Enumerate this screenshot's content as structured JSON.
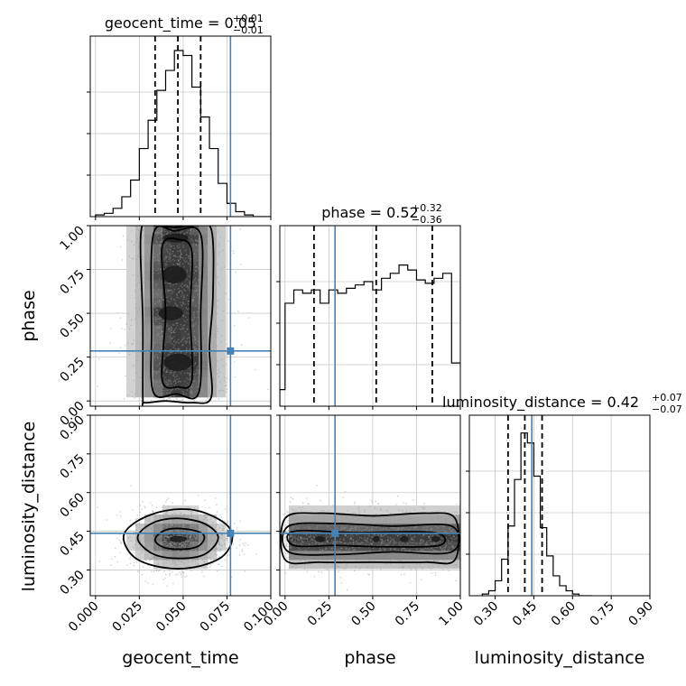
{
  "chart_data": {
    "type": "corner",
    "parameters": [
      "geocent_time",
      "phase",
      "luminosity_distance"
    ],
    "truths": {
      "geocent_time": 0.077,
      "phase": 0.285,
      "luminosity_distance": 0.442
    },
    "titles": [
      {
        "parameter": "geocent_time",
        "label": "geocent_time = 0.05",
        "sup": "+0.01",
        "sub": "−0.01"
      },
      {
        "parameter": "phase",
        "label": "phase = 0.52",
        "sup": "+0.32",
        "sub": "−0.36"
      },
      {
        "parameter": "luminosity_distance",
        "label": "luminosity_distance = 0.42",
        "sup": "+0.07",
        "sub": "−0.07"
      }
    ],
    "axes": {
      "geocent_time": {
        "range": [
          -0.003,
          0.1
        ],
        "ticks": [
          0.0,
          0.025,
          0.05,
          0.075,
          0.1
        ],
        "tick_labels": [
          "0.000",
          "0.025",
          "0.050",
          "0.075",
          "0.100"
        ]
      },
      "phase": {
        "range": [
          -0.03,
          1.0
        ],
        "ticks": [
          0.0,
          0.25,
          0.5,
          0.75,
          1.0
        ],
        "tick_labels": [
          "0.00",
          "0.25",
          "0.50",
          "0.75",
          "1.00"
        ]
      },
      "luminosity_distance": {
        "range": [
          0.2,
          0.9
        ],
        "ticks": [
          0.3,
          0.45,
          0.6,
          0.75,
          0.9
        ],
        "tick_labels": [
          "0.30",
          "0.45",
          "0.60",
          "0.75",
          "0.90"
        ]
      }
    },
    "histograms": {
      "geocent_time": {
        "quantiles": [
          0.034,
          0.047,
          0.06
        ],
        "bin_edges": [
          0.0,
          0.005,
          0.01,
          0.015,
          0.02,
          0.025,
          0.03,
          0.035,
          0.04,
          0.045,
          0.05,
          0.055,
          0.06,
          0.065,
          0.07,
          0.075,
          0.08,
          0.085,
          0.09,
          0.095,
          0.1
        ],
        "counts": [
          0.01,
          0.02,
          0.05,
          0.12,
          0.22,
          0.41,
          0.58,
          0.76,
          0.88,
          1.0,
          0.97,
          0.78,
          0.6,
          0.41,
          0.2,
          0.08,
          0.03,
          0.01,
          0.0,
          0.0
        ]
      },
      "phase": {
        "quantiles": [
          0.165,
          0.52,
          0.84
        ],
        "bin_edges": [
          -0.03,
          0.0,
          0.05,
          0.1,
          0.15,
          0.2,
          0.25,
          0.3,
          0.35,
          0.4,
          0.45,
          0.5,
          0.55,
          0.6,
          0.65,
          0.7,
          0.75,
          0.8,
          0.85,
          0.9,
          0.95,
          1.0
        ],
        "counts": [
          0.1,
          0.62,
          0.7,
          0.68,
          0.7,
          0.62,
          0.7,
          0.68,
          0.71,
          0.73,
          0.75,
          0.7,
          0.77,
          0.8,
          0.85,
          0.82,
          0.76,
          0.74,
          0.77,
          0.8,
          0.26
        ]
      },
      "luminosity_distance": {
        "quantiles": [
          0.35,
          0.415,
          0.482
        ],
        "bin_edges": [
          0.25,
          0.275,
          0.3,
          0.325,
          0.35,
          0.375,
          0.4,
          0.425,
          0.45,
          0.475,
          0.5,
          0.525,
          0.55,
          0.575,
          0.6,
          0.625,
          0.65,
          0.675
        ],
        "counts": [
          0.01,
          0.03,
          0.09,
          0.22,
          0.42,
          0.7,
          0.98,
          0.92,
          0.72,
          0.41,
          0.24,
          0.12,
          0.06,
          0.03,
          0.01,
          0.0,
          0.0
        ]
      }
    },
    "joint": [
      {
        "x": "geocent_time",
        "y": "phase",
        "scatter": {
          "x_center": 0.047,
          "x_sd": 0.0135,
          "y_uniform": [
            0.0,
            1.0
          ],
          "count": 1300
        },
        "contours": [
          [
            [
              0.027,
              0.02
            ],
            [
              0.027,
              0.45
            ],
            [
              0.026,
              0.97
            ],
            [
              0.034,
              1.0
            ],
            [
              0.045,
              0.99
            ],
            [
              0.055,
              1.0
            ],
            [
              0.066,
              0.98
            ],
            [
              0.067,
              0.6
            ],
            [
              0.065,
              0.3
            ],
            [
              0.066,
              0.02
            ],
            [
              0.055,
              -0.01
            ],
            [
              0.04,
              0.0
            ],
            [
              0.028,
              -0.01
            ]
          ],
          [
            [
              0.033,
              0.05
            ],
            [
              0.032,
              0.4
            ],
            [
              0.033,
              0.95
            ],
            [
              0.045,
              0.97
            ],
            [
              0.06,
              0.95
            ],
            [
              0.06,
              0.5
            ],
            [
              0.059,
              0.05
            ],
            [
              0.046,
              0.04
            ]
          ],
          [
            [
              0.038,
              0.12
            ],
            [
              0.04,
              0.5
            ],
            [
              0.038,
              0.88
            ],
            [
              0.048,
              0.92
            ],
            [
              0.055,
              0.85
            ],
            [
              0.054,
              0.5
            ],
            [
              0.055,
              0.12
            ],
            [
              0.047,
              0.08
            ]
          ]
        ],
        "hotspots": [
          [
            0.046,
            0.93,
            0.007,
            0.025
          ],
          [
            0.045,
            0.72,
            0.007,
            0.05
          ],
          [
            0.043,
            0.5,
            0.007,
            0.04
          ],
          [
            0.047,
            0.22,
            0.008,
            0.05
          ]
        ]
      },
      {
        "x": "geocent_time",
        "y": "luminosity_distance",
        "scatter": {
          "x_center": 0.047,
          "x_sd": 0.0135,
          "y_center": 0.42,
          "y_sd": 0.058,
          "count": 1300
        },
        "contours": [
          [
            [
              0.016,
              0.43
            ],
            [
              0.024,
              0.49
            ],
            [
              0.04,
              0.53
            ],
            [
              0.058,
              0.53
            ],
            [
              0.074,
              0.48
            ],
            [
              0.078,
              0.42
            ],
            [
              0.072,
              0.35
            ],
            [
              0.056,
              0.31
            ],
            [
              0.038,
              0.31
            ],
            [
              0.022,
              0.35
            ]
          ],
          [
            [
              0.024,
              0.425
            ],
            [
              0.032,
              0.48
            ],
            [
              0.046,
              0.5
            ],
            [
              0.062,
              0.48
            ],
            [
              0.07,
              0.425
            ],
            [
              0.062,
              0.36
            ],
            [
              0.046,
              0.345
            ],
            [
              0.032,
              0.365
            ]
          ],
          [
            [
              0.034,
              0.42
            ],
            [
              0.04,
              0.455
            ],
            [
              0.05,
              0.46
            ],
            [
              0.06,
              0.445
            ],
            [
              0.062,
              0.42
            ],
            [
              0.058,
              0.39
            ],
            [
              0.048,
              0.38
            ],
            [
              0.038,
              0.39
            ]
          ]
        ],
        "hotspots": [
          [
            0.047,
            0.42,
            0.005,
            0.012
          ]
        ]
      },
      {
        "x": "phase",
        "y": "luminosity_distance",
        "scatter": {
          "x_uniform": [
            0.0,
            1.0
          ],
          "y_center": 0.42,
          "y_sd": 0.058,
          "count": 1300
        },
        "contours": [
          [
            [
              0.0,
              0.34
            ],
            [
              0.0,
              0.5
            ],
            [
              0.2,
              0.52
            ],
            [
              0.5,
              0.51
            ],
            [
              0.8,
              0.52
            ],
            [
              0.97,
              0.5
            ],
            [
              0.97,
              0.34
            ],
            [
              0.8,
              0.33
            ],
            [
              0.5,
              0.33
            ],
            [
              0.2,
              0.33
            ]
          ],
          [
            [
              0.02,
              0.37
            ],
            [
              0.02,
              0.47
            ],
            [
              0.3,
              0.48
            ],
            [
              0.6,
              0.47
            ],
            [
              0.95,
              0.47
            ],
            [
              0.95,
              0.37
            ],
            [
              0.6,
              0.37
            ],
            [
              0.3,
              0.36
            ]
          ],
          [
            [
              0.05,
              0.395
            ],
            [
              0.05,
              0.45
            ],
            [
              0.4,
              0.445
            ],
            [
              0.85,
              0.445
            ],
            [
              0.88,
              0.395
            ],
            [
              0.55,
              0.39
            ],
            [
              0.3,
              0.395
            ]
          ]
        ],
        "hotspots": [
          [
            0.68,
            0.42,
            0.025,
            0.012
          ],
          [
            0.86,
            0.42,
            0.025,
            0.012
          ],
          [
            0.52,
            0.42,
            0.02,
            0.012
          ],
          [
            0.2,
            0.42,
            0.03,
            0.012
          ]
        ]
      }
    ],
    "colors": {
      "truth": "#4682b4",
      "line": "#000000",
      "grid": "#c8c8c8",
      "scatter": "#9a9a9a"
    }
  }
}
